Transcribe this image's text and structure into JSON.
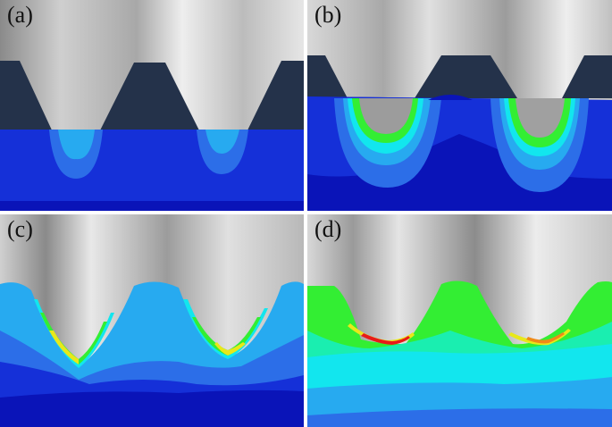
{
  "panels": [
    {
      "label": "(a)"
    },
    {
      "label": "(b)"
    },
    {
      "label": "(c)"
    },
    {
      "label": "(d)"
    }
  ],
  "colors": {
    "tool_dark": "#24324a",
    "tool_light": "#e8e8e8",
    "tool_mid": "#b4b4b4",
    "tool_shadow": "#7a7a7a",
    "contour_blue_deep": "#0a14b8",
    "contour_blue": "#1530d8",
    "contour_blue_light": "#2c6ee8",
    "contour_sky": "#27aaf0",
    "contour_cyan": "#12e6ee",
    "contour_green_cyan": "#1aeeb0",
    "contour_green": "#33ee33",
    "contour_yellow": "#e8e81a",
    "contour_orange": "#f08a18",
    "contour_red": "#e81a1a"
  }
}
